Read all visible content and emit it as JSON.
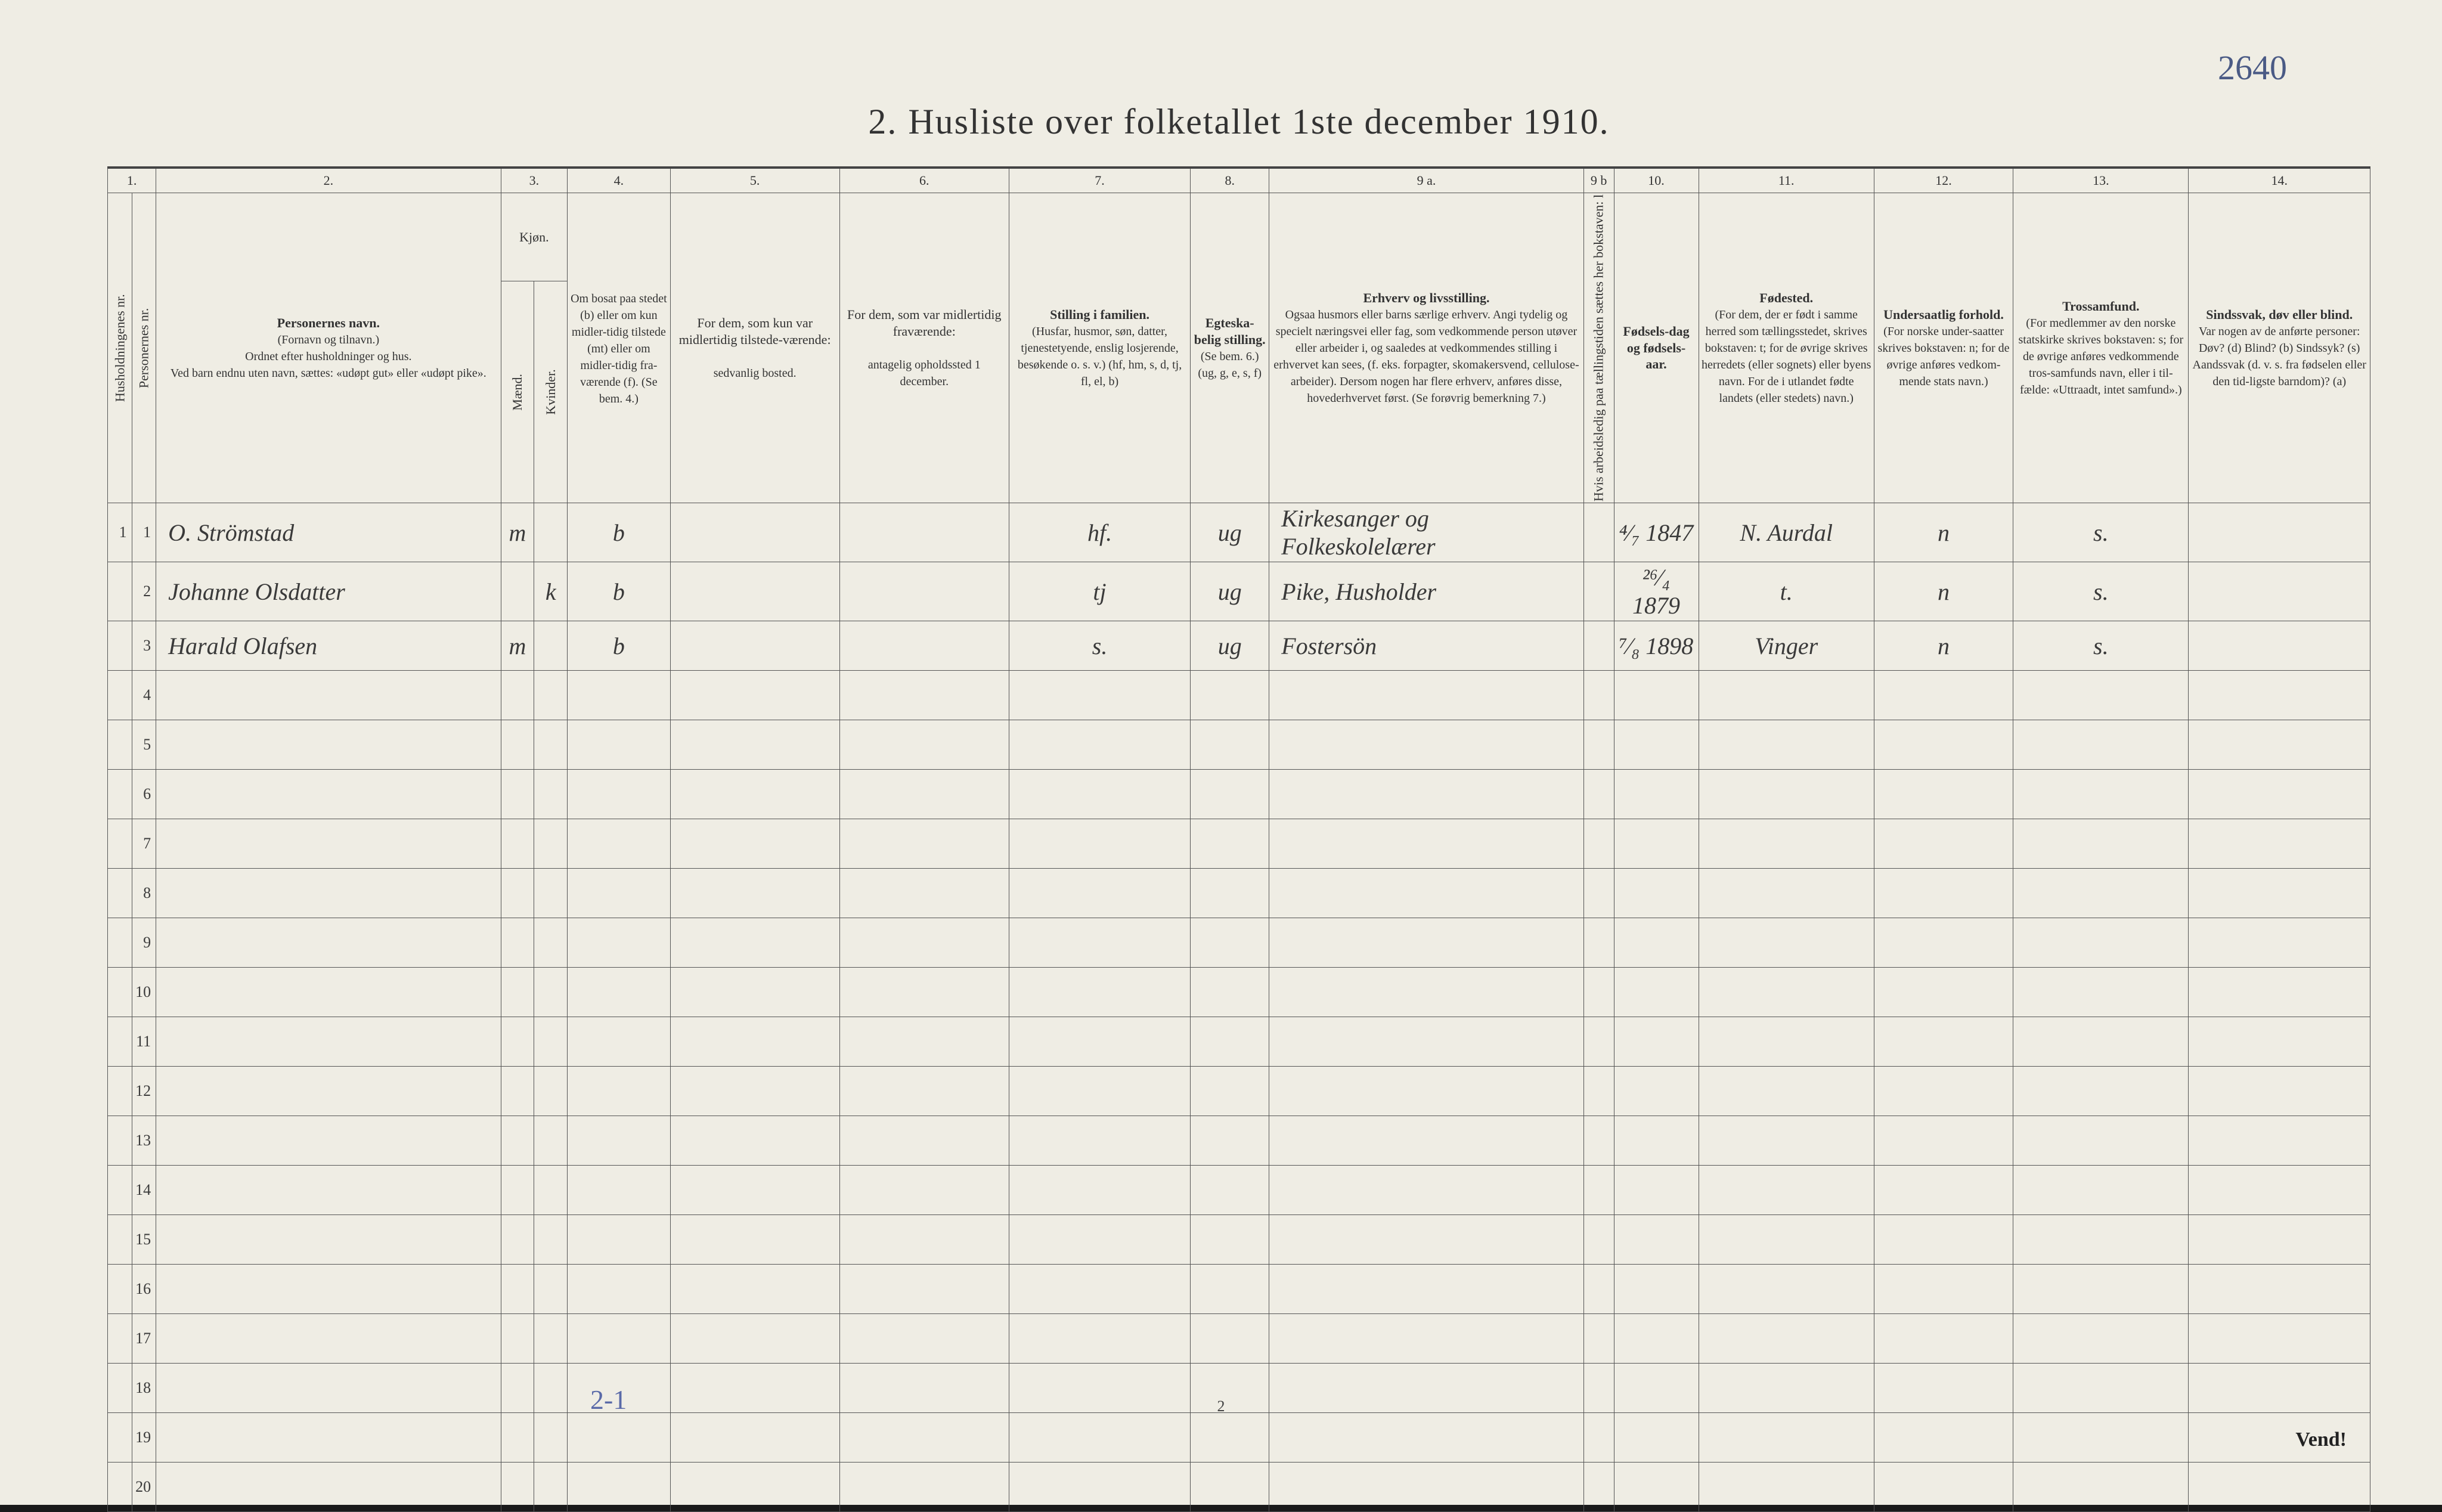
{
  "annotation_top_right": "2640",
  "title": {
    "num": "2.",
    "text": "Husliste over folketallet 1ste december 1910."
  },
  "columns": {
    "numbers": [
      "1.",
      "2.",
      "3.",
      "4.",
      "5.",
      "6.",
      "7.",
      "8.",
      "9 a.",
      "9 b",
      "10.",
      "11.",
      "12.",
      "13.",
      "14."
    ],
    "c1a": "Husholdningenes nr.",
    "c1b": "Personernes nr.",
    "c2_title": "Personernes navn.",
    "c2_sub1": "(Fornavn og tilnavn.)",
    "c2_sub2": "Ordnet efter husholdninger og hus.",
    "c2_sub3": "Ved barn endnu uten navn, sættes: «udøpt gut» eller «udøpt pike».",
    "c3_title": "Kjøn.",
    "c3_m": "Mænd.",
    "c3_k": "Kvinder.",
    "c3_mk_m": "m.",
    "c3_mk_k": "k.",
    "c4": "Om bosat paa stedet (b) eller om kun midler-tidig tilstede (mt) eller om midler-tidig fra-værende (f). (Se bem. 4.)",
    "c5_title": "For dem, som kun var midlertidig tilstede-værende:",
    "c5_sub": "sedvanlig bosted.",
    "c6_title": "For dem, som var midlertidig fraværende:",
    "c6_sub": "antagelig opholdssted 1 december.",
    "c7_title": "Stilling i familien.",
    "c7_sub": "(Husfar, husmor, søn, datter, tjenestetyende, enslig losjerende, besøkende o. s. v.) (hf, hm, s, d, tj, fl, el, b)",
    "c8_title": "Egteska-belig stilling.",
    "c8_sub": "(Se bem. 6.) (ug, g, e, s, f)",
    "c9a_title": "Erhverv og livsstilling.",
    "c9a_sub": "Ogsaa husmors eller barns særlige erhverv. Angi tydelig og specielt næringsvei eller fag, som vedkommende person utøver eller arbeider i, og saaledes at vedkommendes stilling i erhvervet kan sees, (f. eks. forpagter, skomakersvend, cellulose-arbeider). Dersom nogen har flere erhverv, anføres disse, hovederhvervet først. (Se forøvrig bemerkning 7.)",
    "c9b": "Hvis arbeidsledig paa tællingstiden sættes her bokstaven: l",
    "c10_title": "Fødsels-dag og fødsels-aar.",
    "c11_title": "Fødested.",
    "c11_sub": "(For dem, der er født i samme herred som tællingsstedet, skrives bokstaven: t; for de øvrige skrives herredets (eller sognets) eller byens navn. For de i utlandet fødte landets (eller stedets) navn.)",
    "c12_title": "Undersaatlig forhold.",
    "c12_sub": "(For norske under-saatter skrives bokstaven: n; for de øvrige anføres vedkom-mende stats navn.)",
    "c13_title": "Trossamfund.",
    "c13_sub": "(For medlemmer av den norske statskirke skrives bokstaven: s; for de øvrige anføres vedkommende tros-samfunds navn, eller i til-fælde: «Uttraadt, intet samfund».)",
    "c14_title": "Sindssvak, døv eller blind.",
    "c14_sub": "Var nogen av de anførte personer: Døv? (d) Blind? (b) Sindssyk? (s) Aandssvak (d. v. s. fra fødselen eller den tid-ligste barndom)? (a)"
  },
  "rows": [
    {
      "hh": "1",
      "pn": "1",
      "name": "O. Strömstad",
      "m": "m",
      "k": "",
      "b": "b",
      "c5": "",
      "c6": "",
      "fam": "hf.",
      "egt": "ug",
      "erhv": "Kirkesanger og Folkeskolelærer",
      "l": "",
      "dob": "⁴⁄₇ 1847",
      "birthplace": "N. Aurdal",
      "nat": "n",
      "rel": "s.",
      "c14": ""
    },
    {
      "hh": "",
      "pn": "2",
      "name": "Johanne Olsdatter",
      "m": "",
      "k": "k",
      "b": "b",
      "c5": "",
      "c6": "",
      "fam": "tj",
      "egt": "ug",
      "erhv": "Pike, Husholder",
      "l": "",
      "dob": "²⁶⁄₄ 1879",
      "birthplace": "t.",
      "nat": "n",
      "rel": "s.",
      "c14": ""
    },
    {
      "hh": "",
      "pn": "3",
      "name": "Harald Olafsen",
      "m": "m",
      "k": "",
      "b": "b",
      "c5": "",
      "c6": "",
      "fam": "s.",
      "egt": "ug",
      "erhv": "Fostersön",
      "l": "",
      "dob": "⁷⁄₈ 1898",
      "birthplace": "Vinger",
      "nat": "n",
      "rel": "s.",
      "c14": ""
    }
  ],
  "row_numbers": [
    "1",
    "2",
    "3",
    "4",
    "5",
    "6",
    "7",
    "8",
    "9",
    "10",
    "11",
    "12",
    "13",
    "14",
    "15",
    "16",
    "17",
    "18",
    "19",
    "20"
  ],
  "footer": {
    "tally": "2-1",
    "page": "2",
    "vend": "Vend!"
  },
  "colwidths": {
    "c1a": 40,
    "c1b": 40,
    "c2": 570,
    "c3m": 55,
    "c3k": 55,
    "c4": 170,
    "c5": 280,
    "c6": 280,
    "c7": 300,
    "c8": 130,
    "c9a": 520,
    "c9b": 50,
    "c10": 140,
    "c11": 290,
    "c12": 230,
    "c13": 290,
    "c14": 300
  },
  "colors": {
    "paper": "#efede4",
    "ink": "#333333",
    "rule": "#555555",
    "pencil": "#5a6aa8"
  }
}
